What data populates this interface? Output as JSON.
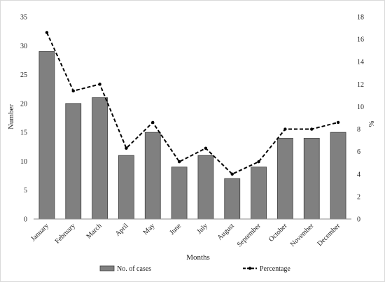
{
  "chart_data": {
    "type": "bar",
    "title": "",
    "categories": [
      "January",
      "February",
      "March",
      "April",
      "May",
      "June",
      "July",
      "August",
      "September",
      "October",
      "November",
      "December"
    ],
    "series": [
      {
        "name": "No. of cases",
        "type": "bar",
        "axis": "left",
        "values": [
          29,
          20,
          21,
          11,
          15,
          9,
          11,
          7,
          9,
          14,
          14,
          15
        ]
      },
      {
        "name": "Percentage",
        "type": "line",
        "axis": "right",
        "values": [
          16.6,
          11.4,
          12.0,
          6.3,
          8.6,
          5.1,
          6.3,
          4.0,
          5.1,
          8.0,
          8.0,
          8.6
        ]
      }
    ],
    "xlabel": "Months",
    "ylabel": "Number",
    "y2label": "%",
    "ylim": [
      0,
      35
    ],
    "yticks": [
      0,
      5,
      10,
      15,
      20,
      25,
      30,
      35
    ],
    "y2lim": [
      0,
      18
    ],
    "y2ticks": [
      0,
      2,
      4,
      6,
      8,
      10,
      12,
      14,
      16,
      18
    ],
    "grid": false,
    "legend": "bottom",
    "colors": {
      "bar_fill": "#808080",
      "bar_stroke": "#404040",
      "line": "#000000"
    }
  }
}
